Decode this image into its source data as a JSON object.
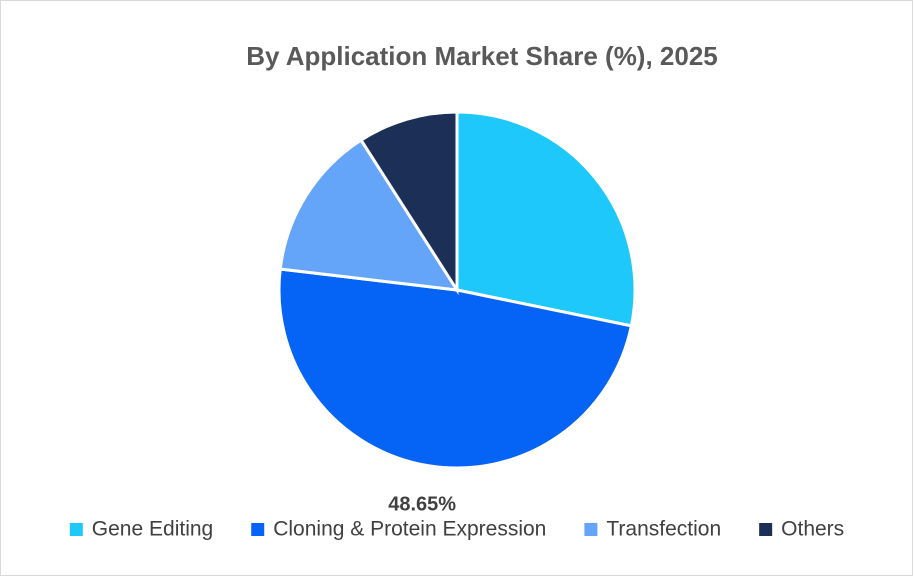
{
  "chart_data": {
    "type": "pie",
    "title": "By Application Market Share (%), 2025",
    "categories": [
      "Gene Editing",
      "Cloning & Protein Expression",
      "Transfection",
      "Others"
    ],
    "values": [
      28.23,
      48.65,
      14.06,
      9.06
    ],
    "value_labels": [
      null,
      "48.65%",
      null,
      null
    ],
    "colors": [
      "#1ec8fa",
      "#0563f5",
      "#64a5fa",
      "#1b2f57"
    ],
    "start_angle": 0,
    "direction": "clockwise",
    "legend": "bottom"
  }
}
